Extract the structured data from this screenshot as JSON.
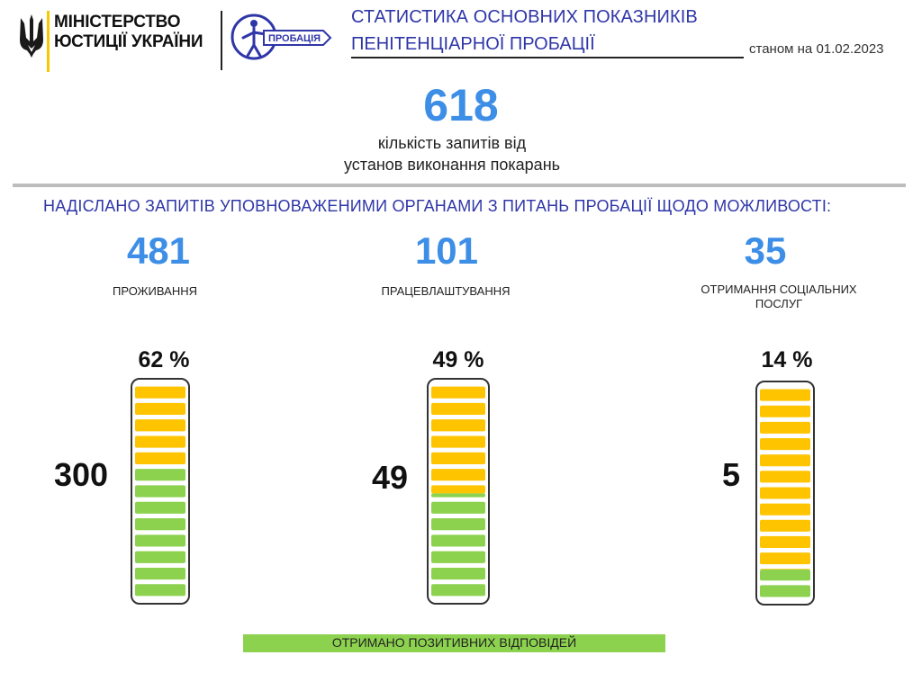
{
  "header": {
    "ministry_line_1": "МІНІСТЕРСТВО",
    "ministry_line_2": "ЮСТИЦІЇ УКРАЇНИ",
    "probation_logo_text": "ПРОБАЦІЯ",
    "title_line_1": "СТАТИСТИКА ОСНОВНИХ ПОКАЗНИКІВ",
    "title_line_2": "ПЕНІТЕНЦІАРНОЇ ПРОБАЦІЇ",
    "date_label": "станом на 01.02.2023"
  },
  "total": {
    "value": "618",
    "label_line_1": "кількість запитів від",
    "label_line_2": "установ виконання покарань"
  },
  "section_heading": "НАДІСЛАНО ЗАПИТІВ УПОВНОВАЖЕНИМИ ОРГАНАМИ З ПИТАНЬ ПРОБАЦІЇ  ЩОДО МОЖЛИВОСТІ:",
  "legend_label": "ОТРИМАНО  ПОЗИТИВНИХ ВІДПОВІДЕЙ",
  "colors": {
    "accent_blue": "#3d8ee6",
    "title_blue": "#2f36a8",
    "positive_green": "#8cd24f",
    "remainder_yellow": "#ffc400"
  },
  "chart_data": {
    "type": "bar",
    "categories": [
      "ПРОЖИВАННЯ",
      "ПРАЦЕВЛАШТУВАННЯ",
      "ОТРИМАННЯ СОЦІАЛЬНИХ ПОСЛУГ"
    ],
    "category_label_lines": [
      [
        "ПРОЖИВАННЯ"
      ],
      [
        "ПРАЦЕВЛАШТУВАННЯ"
      ],
      [
        "ОТРИМАННЯ  СОЦІАЛЬНИХ",
        "ПОСЛУГ"
      ]
    ],
    "requests": [
      "481",
      "101",
      "35"
    ],
    "positive": [
      "300",
      "49",
      "5"
    ],
    "percent_labels": [
      "62 %",
      "49 %",
      "14 %"
    ],
    "positive_share": [
      0.62,
      0.49,
      0.14
    ],
    "segments_per_bar": [
      13,
      13,
      13
    ],
    "series": [
      {
        "name": "ОТРИМАНО  ПОЗИТИВНИХ ВІДПОВІДЕЙ",
        "values": [
          300,
          49,
          5
        ]
      }
    ]
  }
}
